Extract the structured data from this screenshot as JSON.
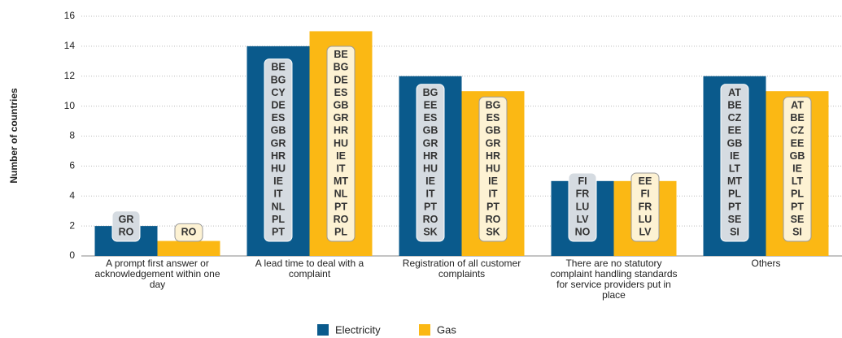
{
  "chart_data": {
    "type": "bar",
    "y_label": "Number of countries",
    "categories": [
      "A prompt first answer or acknowledgement within one day",
      "A lead time to deal with a complaint",
      "Registration of all customer complaints",
      "There are no statutory complaint handling standards for service providers put in place",
      "Others"
    ],
    "series": [
      {
        "name": "Electricity",
        "color": "#0a5a8c",
        "values": [
          2,
          14,
          12,
          5,
          12
        ],
        "labels": [
          [
            "GR",
            "RO"
          ],
          [
            "BE",
            "BG",
            "CY",
            "DE",
            "ES",
            "GB",
            "GR",
            "HR",
            "HU",
            "IE",
            "IT",
            "NL",
            "PL",
            "PT"
          ],
          [
            "BG",
            "EE",
            "ES",
            "GB",
            "GR",
            "HR",
            "HU",
            "IE",
            "IT",
            "PT",
            "RO",
            "SK"
          ],
          [
            "FI",
            "FR",
            "LU",
            "LV",
            "NO"
          ],
          [
            "AT",
            "BE",
            "CZ",
            "EE",
            "GB",
            "IE",
            "LT",
            "MT",
            "PL",
            "PT",
            "SE",
            "SI"
          ]
        ]
      },
      {
        "name": "Gas",
        "color": "#fbb814",
        "values": [
          1,
          15,
          11,
          5,
          11
        ],
        "labels": [
          [
            "RO"
          ],
          [
            "BE",
            "BG",
            "DE",
            "ES",
            "GB",
            "GR",
            "HR",
            "HU",
            "IE",
            "IT",
            "MT",
            "NL",
            "PT",
            "RO",
            "PL"
          ],
          [
            "BG",
            "ES",
            "GB",
            "GR",
            "HR",
            "HU",
            "IE",
            "IT",
            "PT",
            "RO",
            "SK"
          ],
          [
            "EE",
            "FI",
            "FR",
            "LU",
            "LV"
          ],
          [
            "AT",
            "BE",
            "CZ",
            "EE",
            "GB",
            "IE",
            "LT",
            "PL",
            "PT",
            "SE",
            "SI"
          ]
        ]
      }
    ],
    "ylim": [
      0,
      16
    ],
    "yticks": [
      0,
      2,
      4,
      6,
      8,
      10,
      12,
      14,
      16
    ],
    "grid": true
  }
}
